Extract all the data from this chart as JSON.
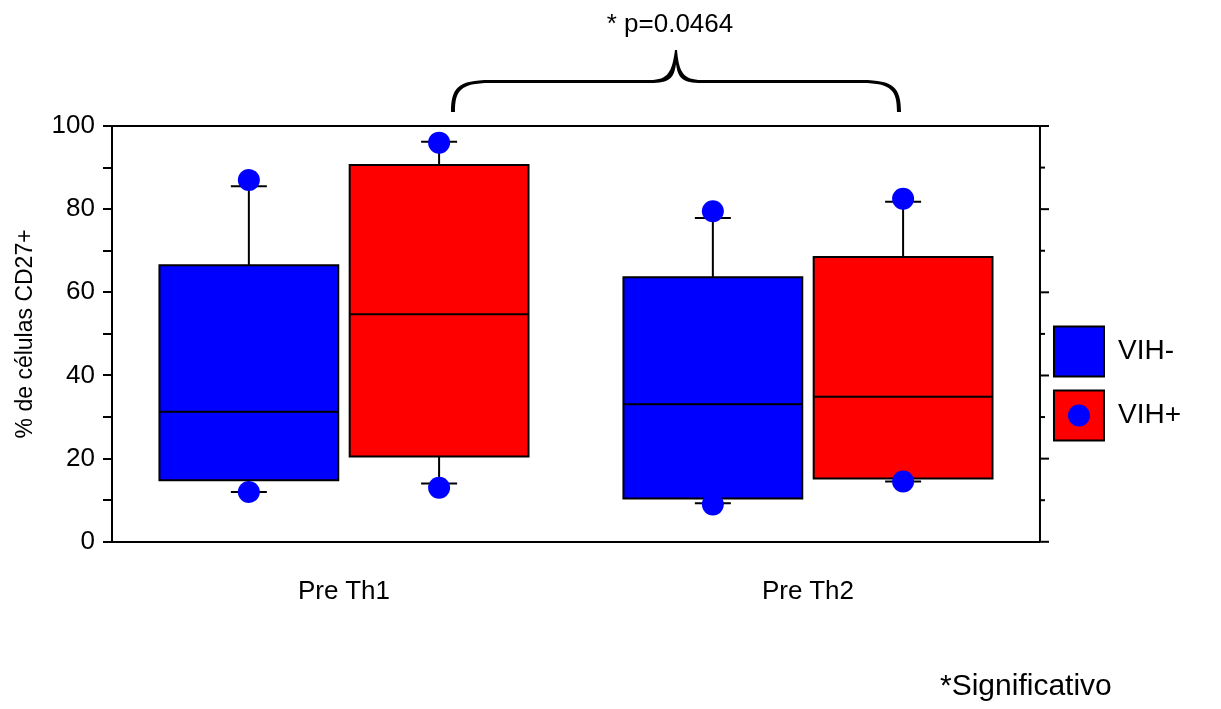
{
  "chart_data": {
    "type": "box",
    "ylabel": "% de células CD27+",
    "categories": [
      "Pre Th1",
      "Pre Th2"
    ],
    "series": [
      {
        "name": "VIH-",
        "color": "#0000ff",
        "boxes": [
          {
            "low": 12,
            "q1": 14.8,
            "median": 31.3,
            "q3": 66.5,
            "high": 85.5,
            "outliers": [
              87,
              12
            ]
          },
          {
            "low": 9.3,
            "q1": 10.4,
            "median": 33.1,
            "q3": 63.6,
            "high": 77.9,
            "outliers": [
              79.5,
              9
            ]
          }
        ]
      },
      {
        "name": "VIH+",
        "color": "#ff0000",
        "boxes": [
          {
            "low": 14,
            "q1": 20.5,
            "median": 54.7,
            "q3": 90.6,
            "high": 96.2,
            "outliers": [
              96,
              13
            ]
          },
          {
            "low": 14.5,
            "q1": 15.2,
            "median": 34.9,
            "q3": 68.5,
            "high": 81.8,
            "outliers": [
              82.5,
              14.5
            ]
          }
        ]
      }
    ],
    "ylim": [
      0,
      100
    ],
    "yticks": [
      0,
      {
        "value": 10,
        "label": null
      },
      20,
      {
        "value": 30,
        "label": null
      },
      40,
      {
        "value": 50,
        "label": null
      },
      60,
      {
        "value": 70,
        "label": null
      },
      80,
      {
        "value": 90,
        "label": null
      },
      100
    ],
    "grid": false,
    "legend": "right",
    "marker": "circle",
    "annotations": [
      "* p=0.0464",
      "*Significativo"
    ]
  }
}
